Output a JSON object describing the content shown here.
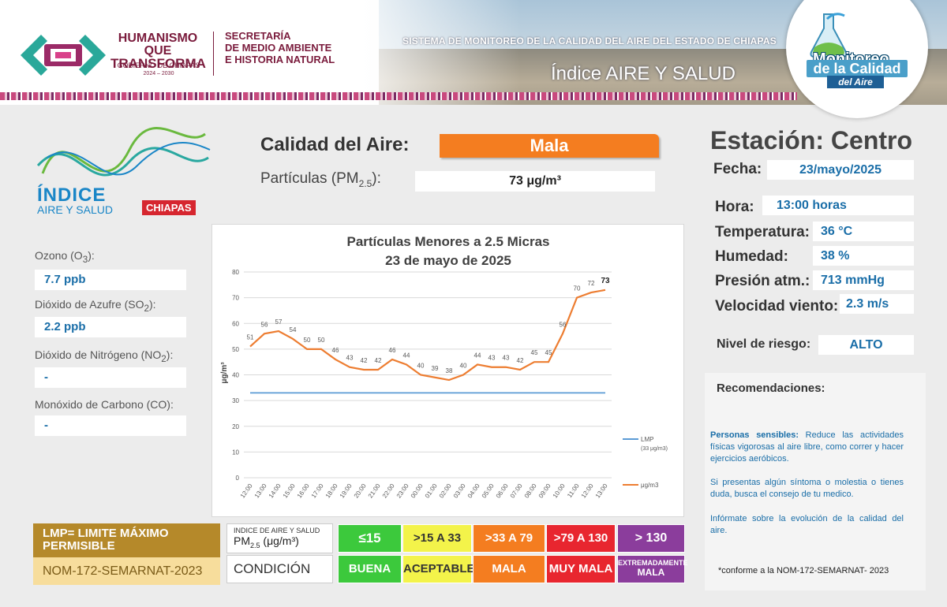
{
  "header": {
    "brand_line1": "HUMANISMO QUE",
    "brand_line2": "TRANSFORMA",
    "brand_sub": "GOBIERNO DE CHIAPAS",
    "brand_years": "2024 – 2030",
    "secretaria_l1": "SECRETARÍA",
    "secretaria_l2": "DE MEDIO AMBIENTE",
    "secretaria_l3": "E HISTORIA NATURAL",
    "system_title": "SISTEMA DE MONITOREO DE LA CALIDAD DEL AIRE DEL ESTADO DE CHIAPAS",
    "index_title": "Índice AIRE Y SALUD",
    "monitoreo_l1": "Monitoreo",
    "monitoreo_l2": "de la Calidad",
    "monitoreo_l3": "del Aire"
  },
  "index_logo": {
    "t1": "ÍNDICE",
    "t2": "AIRE Y SALUD",
    "t3": "CHIAPAS"
  },
  "pollutants": [
    {
      "label_pre": "Ozono (O",
      "sub": "3",
      "label_post": "):",
      "value": "7.7 ppb"
    },
    {
      "label_pre": "Dióxido de Azufre  (SO",
      "sub": "2",
      "label_post": "):",
      "value": "2.2 ppb"
    },
    {
      "label_pre": "Dióxido de Nitrógeno (NO",
      "sub": "2",
      "label_post": "):",
      "value": "-"
    },
    {
      "label_pre": "Monóxido de Carbono (CO):",
      "sub": "",
      "label_post": "",
      "value": "-"
    }
  ],
  "quality": {
    "label": "Calidad del Aire:",
    "value": "Mala",
    "pm_label_pre": "Partículas (PM",
    "pm_label_sub": "2.5",
    "pm_label_post": "):",
    "pm_value": "73 μg/m³"
  },
  "chart_data": {
    "type": "line",
    "title": "Partículas Menores a 2.5 Micras",
    "subtitle": "23 de mayo de 2025",
    "ylabel": "μg/m³",
    "ylim": [
      0,
      80
    ],
    "yticks": [
      0,
      10,
      20,
      30,
      40,
      50,
      60,
      70,
      80
    ],
    "x": [
      "12:00",
      "13:00",
      "14:00",
      "15:00",
      "16:00",
      "17:00",
      "18:00",
      "19:00",
      "20:00",
      "21:00",
      "22:00",
      "23:00",
      "00:00",
      "01:00",
      "02:00",
      "03:00",
      "04:00",
      "05:00",
      "06:00",
      "07:00",
      "08:00",
      "09:00",
      "10:00",
      "11:00",
      "12:00",
      "13:00"
    ],
    "series": [
      {
        "name": "μg/m3",
        "color": "#ed7d31",
        "values": [
          51,
          56,
          57,
          54,
          50,
          50,
          46,
          43,
          42,
          42,
          46,
          44,
          40,
          39,
          38,
          40,
          44,
          43,
          43,
          42,
          45,
          45,
          56,
          70,
          72,
          73
        ]
      },
      {
        "name": "LMP",
        "note": "(33 μg/m3)",
        "color": "#5b9bd5",
        "values": [
          33,
          33,
          33,
          33,
          33,
          33,
          33,
          33,
          33,
          33,
          33,
          33,
          33,
          33,
          33,
          33,
          33,
          33,
          33,
          33,
          33,
          33,
          33,
          33,
          33,
          33
        ]
      }
    ],
    "legend": "right",
    "grid": true
  },
  "station": {
    "title": "Estación: Centro",
    "fecha_label": "Fecha:",
    "fecha": "23/mayo/2025",
    "hora_label": "Hora:",
    "hora": "13:00 horas",
    "temp_label": "Temperatura:",
    "temp": "36 °C",
    "hum_label": "Humedad:",
    "hum": "38 %",
    "pres_label": "Presión atm.:",
    "pres": "713 mmHg",
    "vel_label": "Velocidad viento:",
    "vel": "2.3 m/s",
    "riesgo_label": "Nivel de riesgo:",
    "riesgo": "ALTO"
  },
  "recommendations": {
    "title": "Recomendaciones:",
    "p1_bold": "Personas sensibles:",
    "p1": " Reduce las actividades físicas vigorosas al aire libre, como correr y hacer ejercicios aeróbicos.",
    "p2": "Si presentas algún síntoma o molestia o tienes duda, busca el consejo de tu medico.",
    "p3": "Infórmate sobre la evolución de la calidad del aire.",
    "footnote": "*conforme a la NOM-172-SEMARNAT- 2023"
  },
  "legend_scale": {
    "lmp_title_l1": "LMP= LIMITE MÁXIMO",
    "lmp_title_l2": "PERMISIBLE",
    "nom": "NOM-172-SEMARNAT-2023",
    "header_l1": "INDICE DE AIRE Y SALUD",
    "header_l2": "PM",
    "header_l2_sub": "2.5",
    "header_l2_post": " (μg/m³)",
    "condition_label": "CONDICIÓN",
    "levels": [
      {
        "range": "≤15",
        "cond": "BUENA",
        "color": "#3cc93c",
        "text": "#ffffff"
      },
      {
        "range": ">15 A 33",
        "cond": "ACEPTABLE",
        "color": "#f3f34a",
        "text": "#333333"
      },
      {
        "range": ">33 A 79",
        "cond": "MALA",
        "color": "#f47d20",
        "text": "#ffffff"
      },
      {
        "range": ">79 A 130",
        "cond": "MUY MALA",
        "color": "#e8262f",
        "text": "#ffffff"
      },
      {
        "range": "> 130",
        "cond_l1": "EXTREMADAMENTE",
        "cond_l2": "MALA",
        "color": "#8b3d9c",
        "text": "#ffffff"
      }
    ]
  }
}
